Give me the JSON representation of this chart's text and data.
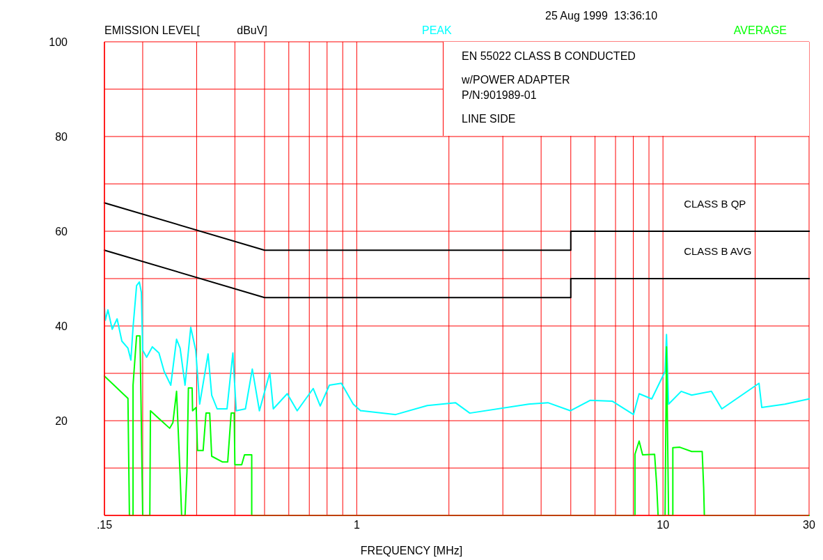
{
  "chart_data": {
    "type": "line",
    "title": "25 Aug 1999  13:36:10",
    "ylabel": "EMISSION LEVEL[            dBuV]",
    "xlabel": "FREQUENCY [MHz]",
    "log": "x",
    "grid": true,
    "legend": "top",
    "marker": "none",
    "xlim": [
      0.15,
      30
    ],
    "xticks": [
      {
        "value": 0.15,
        "label": ".15"
      },
      {
        "value": 0.2,
        "label": null
      },
      {
        "value": 0.3,
        "label": null
      },
      {
        "value": 0.4,
        "label": null
      },
      {
        "value": 0.5,
        "label": null
      },
      {
        "value": 0.6,
        "label": null
      },
      {
        "value": 0.7,
        "label": null
      },
      {
        "value": 0.8,
        "label": null
      },
      {
        "value": 0.9,
        "label": null
      },
      1,
      {
        "value": 2,
        "label": null
      },
      {
        "value": 3,
        "label": null
      },
      {
        "value": 4,
        "label": null
      },
      {
        "value": 5,
        "label": null
      },
      {
        "value": 6,
        "label": null
      },
      {
        "value": 7,
        "label": null
      },
      {
        "value": 8,
        "label": null
      },
      {
        "value": 9,
        "label": null
      },
      10,
      {
        "value": 20,
        "label": null
      },
      30
    ],
    "ylim": [
      0,
      100
    ],
    "yticks": [
      {
        "value": 0,
        "label": null
      },
      {
        "value": 10,
        "label": null
      },
      20,
      {
        "value": 30,
        "label": null
      },
      40,
      {
        "value": 50,
        "label": null
      },
      60,
      {
        "value": 70,
        "label": null
      },
      80,
      {
        "value": 90,
        "label": null
      },
      100
    ],
    "annotations": [
      "EN 55022 CLASS B CONDUCTED",
      "w/POWER ADAPTER",
      "P/N:901989-01",
      "LINE SIDE",
      {
        "text": "CLASS B QP",
        "x": 12.2,
        "y": 60
      },
      {
        "text": "CLASS B AVG",
        "x": 12.2,
        "y": 50
      }
    ],
    "series": [
      {
        "color": "#000000",
        "x": [
          0.15,
          0.5,
          5,
          5,
          30
        ],
        "values": [
          66,
          56,
          56,
          60,
          60
        ]
      },
      {
        "color": "#000000",
        "x": [
          0.15,
          0.5,
          5,
          5,
          30
        ],
        "values": [
          56,
          46,
          46,
          50,
          50
        ]
      },
      {
        "name": "PEAK",
        "color": "#00ffff",
        "x": [
          0.15,
          0.151,
          0.154,
          0.159,
          0.165,
          0.171,
          0.179,
          0.183,
          0.186,
          0.191,
          0.195,
          0.198,
          0.2,
          0.206,
          0.215,
          0.226,
          0.235,
          0.247,
          0.258,
          0.265,
          0.275,
          0.287,
          0.298,
          0.307,
          0.327,
          0.336,
          0.35,
          0.377,
          0.394,
          0.404,
          0.433,
          0.456,
          0.481,
          0.52,
          0.534,
          0.593,
          0.639,
          0.721,
          0.76,
          0.814,
          0.891,
          0.974,
          1.03,
          1.04,
          1.34,
          1.7,
          2.1,
          2.34,
          3.64,
          4.21,
          4.99,
          5.78,
          6.84,
          8.01,
          8.36,
          9.19,
          10.16,
          10.27,
          10.43,
          11.47,
          12.41,
          14.39,
          15.57,
          20.59,
          21.02,
          25.01,
          30
        ],
        "values": [
          43.8,
          41.2,
          43.4,
          39.3,
          41.5,
          36.8,
          35.3,
          32.8,
          39.7,
          48.5,
          49.3,
          47.1,
          34.9,
          33.4,
          35.6,
          34.3,
          30.4,
          27.5,
          37.2,
          35.3,
          27.5,
          39.7,
          34.9,
          23.5,
          34.1,
          25.4,
          22.5,
          22.5,
          34.3,
          22.1,
          22.5,
          30.9,
          22.1,
          30.1,
          22.5,
          25.7,
          22.1,
          26.8,
          23.1,
          27.5,
          27.9,
          23.5,
          22.1,
          22.1,
          21.3,
          23.2,
          23.8,
          21.6,
          23.5,
          23.8,
          22.1,
          24.3,
          24.1,
          21.3,
          25.7,
          24.6,
          30.4,
          38.2,
          23.5,
          26.2,
          25.4,
          26.2,
          22.5,
          27.9,
          22.8,
          23.5,
          24.6
        ]
      },
      {
        "name": "AVERAGE",
        "color": "#00ff00",
        "x": [
          0.15,
          0.179,
          0.18,
          0.181,
          0.186,
          0.186,
          0.191,
          0.196,
          0.2,
          0.211,
          0.212,
          0.229,
          0.245,
          0.251,
          0.258,
          0.265,
          0.268,
          0.275,
          0.279,
          0.282,
          0.29,
          0.291,
          0.299,
          0.302,
          0.315,
          0.322,
          0.331,
          0.336,
          0.364,
          0.379,
          0.389,
          0.398,
          0.4,
          0.421,
          0.43,
          0.454,
          0.454,
          8.1,
          8.1,
          8.36,
          8.58,
          9.39,
          9.54,
          9.64,
          10.16,
          10.27,
          10.43,
          10.77,
          10.77,
          11.35,
          12.41,
          13.43,
          13.58,
          13.65,
          30
        ],
        "values": [
          29.4,
          24.7,
          12.2,
          0,
          0,
          27.5,
          37.9,
          37.9,
          0,
          0,
          22.1,
          20.1,
          18.4,
          19.6,
          26.2,
          8.4,
          0,
          0,
          9.3,
          26.9,
          26.9,
          22.1,
          22.8,
          13.7,
          13.7,
          21.6,
          21.6,
          12.5,
          11.3,
          11.3,
          21.6,
          21.6,
          10.7,
          10.7,
          12.8,
          12.8,
          0,
          0,
          12.9,
          15.7,
          12.8,
          12.9,
          6.3,
          0,
          0,
          35.6,
          0,
          0,
          14.3,
          14.4,
          13.5,
          13.5,
          5.9,
          0,
          0
        ]
      }
    ]
  }
}
